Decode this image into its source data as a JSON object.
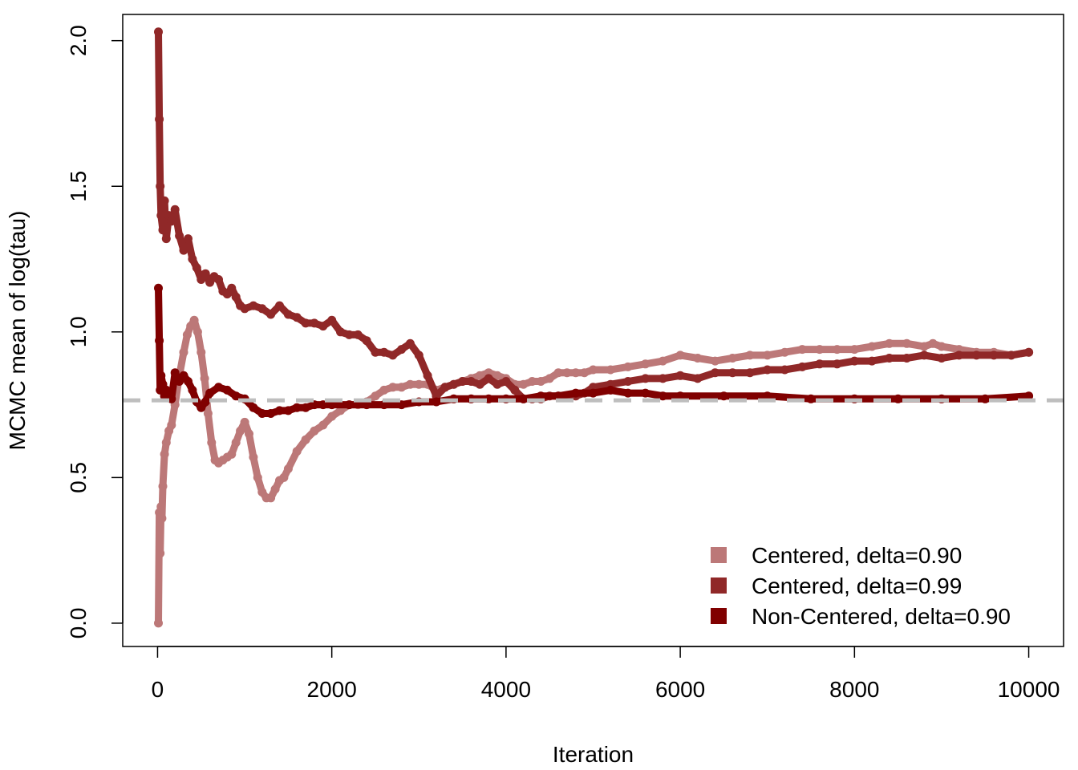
{
  "chart_data": {
    "type": "scatter",
    "title": "",
    "xlabel": "Iteration",
    "ylabel": "MCMC mean of log(tau)",
    "xlim": [
      -400,
      10400
    ],
    "ylim": [
      -0.08,
      2.09
    ],
    "x_ticks": [
      0,
      2000,
      4000,
      6000,
      8000,
      10000
    ],
    "x_tick_labels": [
      "0",
      "2000",
      "4000",
      "6000",
      "8000",
      "10000"
    ],
    "y_ticks": [
      0.0,
      0.5,
      1.0,
      1.5,
      2.0
    ],
    "y_tick_labels": [
      "0.0",
      "0.5",
      "1.0",
      "1.5",
      "2.0"
    ],
    "grid": false,
    "legend_position": "bottom-right",
    "reference_line": {
      "y": 0.765,
      "color": "#bebebe",
      "style": "dashed"
    },
    "series": [
      {
        "name": "Centered, delta=0.90",
        "color": "#bc7878",
        "x": [
          10,
          20,
          30,
          40,
          50,
          60,
          80,
          100,
          130,
          160,
          200,
          250,
          300,
          340,
          380,
          420,
          460,
          500,
          540,
          580,
          620,
          660,
          700,
          750,
          800,
          850,
          900,
          950,
          1000,
          1050,
          1100,
          1150,
          1200,
          1250,
          1300,
          1350,
          1400,
          1450,
          1500,
          1600,
          1700,
          1800,
          1900,
          2000,
          2100,
          2200,
          2300,
          2400,
          2500,
          2600,
          2700,
          2800,
          2900,
          3000,
          3100,
          3200,
          3300,
          3400,
          3500,
          3600,
          3700,
          3800,
          3900,
          4000,
          4100,
          4200,
          4300,
          4400,
          4500,
          4600,
          4700,
          4800,
          4900,
          5000,
          5200,
          5400,
          5600,
          5800,
          6000,
          6200,
          6400,
          6600,
          6800,
          7000,
          7200,
          7400,
          7600,
          7800,
          8000,
          8200,
          8400,
          8600,
          8800,
          8900,
          9000,
          9200,
          9400,
          9600,
          9800,
          10000
        ],
        "y": [
          0.0,
          0.38,
          0.24,
          0.4,
          0.36,
          0.47,
          0.58,
          0.62,
          0.66,
          0.68,
          0.75,
          0.85,
          0.93,
          0.99,
          1.02,
          1.04,
          1.0,
          0.93,
          0.84,
          0.72,
          0.62,
          0.56,
          0.55,
          0.56,
          0.57,
          0.58,
          0.62,
          0.66,
          0.69,
          0.65,
          0.57,
          0.5,
          0.45,
          0.43,
          0.43,
          0.46,
          0.49,
          0.5,
          0.53,
          0.59,
          0.63,
          0.66,
          0.68,
          0.71,
          0.73,
          0.75,
          0.75,
          0.76,
          0.78,
          0.8,
          0.81,
          0.81,
          0.82,
          0.82,
          0.82,
          0.8,
          0.81,
          0.82,
          0.83,
          0.84,
          0.85,
          0.86,
          0.85,
          0.84,
          0.82,
          0.82,
          0.83,
          0.83,
          0.84,
          0.86,
          0.86,
          0.86,
          0.86,
          0.87,
          0.87,
          0.88,
          0.89,
          0.9,
          0.92,
          0.91,
          0.9,
          0.91,
          0.92,
          0.92,
          0.93,
          0.94,
          0.94,
          0.94,
          0.94,
          0.95,
          0.96,
          0.96,
          0.95,
          0.96,
          0.95,
          0.94,
          0.93,
          0.93,
          0.92,
          0.93
        ]
      },
      {
        "name": "Centered, delta=0.99",
        "color": "#902828",
        "x": [
          10,
          20,
          30,
          40,
          60,
          80,
          100,
          130,
          160,
          200,
          250,
          300,
          350,
          400,
          450,
          500,
          550,
          600,
          650,
          700,
          750,
          800,
          850,
          900,
          950,
          1000,
          1100,
          1200,
          1300,
          1400,
          1500,
          1600,
          1700,
          1800,
          1900,
          2000,
          2100,
          2200,
          2300,
          2400,
          2500,
          2600,
          2700,
          2800,
          2900,
          3000,
          3100,
          3200,
          3300,
          3400,
          3500,
          3600,
          3700,
          3800,
          3900,
          4000,
          4100,
          4200,
          4300,
          4400,
          4500,
          4600,
          4700,
          4800,
          4900,
          5000,
          5200,
          5400,
          5600,
          5800,
          6000,
          6200,
          6400,
          6600,
          6800,
          7000,
          7200,
          7400,
          7600,
          7800,
          8000,
          8200,
          8400,
          8600,
          8800,
          9000,
          9200,
          9400,
          9600,
          9800,
          10000
        ],
        "y": [
          2.03,
          1.73,
          1.5,
          1.4,
          1.35,
          1.45,
          1.32,
          1.4,
          1.38,
          1.42,
          1.33,
          1.28,
          1.32,
          1.25,
          1.22,
          1.18,
          1.2,
          1.17,
          1.19,
          1.18,
          1.14,
          1.13,
          1.15,
          1.12,
          1.09,
          1.08,
          1.09,
          1.08,
          1.06,
          1.09,
          1.06,
          1.05,
          1.03,
          1.03,
          1.02,
          1.04,
          1.0,
          0.99,
          0.99,
          0.97,
          0.93,
          0.93,
          0.92,
          0.94,
          0.96,
          0.92,
          0.85,
          0.78,
          0.81,
          0.82,
          0.83,
          0.83,
          0.82,
          0.84,
          0.82,
          0.83,
          0.8,
          0.77,
          0.77,
          0.77,
          0.78,
          0.78,
          0.78,
          0.78,
          0.79,
          0.81,
          0.82,
          0.83,
          0.84,
          0.84,
          0.85,
          0.84,
          0.86,
          0.86,
          0.86,
          0.87,
          0.87,
          0.88,
          0.89,
          0.89,
          0.9,
          0.9,
          0.91,
          0.91,
          0.92,
          0.91,
          0.92,
          0.92,
          0.92,
          0.92,
          0.93
        ]
      },
      {
        "name": "Non-Centered, delta=0.90",
        "color": "#800000",
        "x": [
          10,
          20,
          30,
          40,
          60,
          80,
          100,
          130,
          160,
          200,
          250,
          300,
          350,
          400,
          450,
          500,
          550,
          600,
          700,
          800,
          900,
          1000,
          1100,
          1200,
          1300,
          1400,
          1500,
          1600,
          1700,
          1800,
          1900,
          2000,
          2200,
          2400,
          2600,
          2800,
          3000,
          3200,
          3400,
          3600,
          3800,
          4000,
          4200,
          4400,
          4600,
          4800,
          5000,
          5200,
          5400,
          5600,
          5800,
          6000,
          6500,
          7000,
          7500,
          8000,
          8500,
          9000,
          9500,
          10000
        ],
        "y": [
          1.15,
          0.97,
          0.8,
          0.85,
          0.82,
          0.78,
          0.8,
          0.79,
          0.77,
          0.86,
          0.83,
          0.85,
          0.83,
          0.8,
          0.76,
          0.74,
          0.76,
          0.79,
          0.81,
          0.8,
          0.78,
          0.77,
          0.74,
          0.72,
          0.72,
          0.73,
          0.73,
          0.74,
          0.74,
          0.75,
          0.75,
          0.75,
          0.75,
          0.75,
          0.75,
          0.75,
          0.76,
          0.76,
          0.77,
          0.77,
          0.77,
          0.77,
          0.77,
          0.78,
          0.78,
          0.79,
          0.79,
          0.8,
          0.79,
          0.79,
          0.78,
          0.78,
          0.78,
          0.78,
          0.77,
          0.77,
          0.77,
          0.77,
          0.77,
          0.78
        ]
      }
    ]
  }
}
